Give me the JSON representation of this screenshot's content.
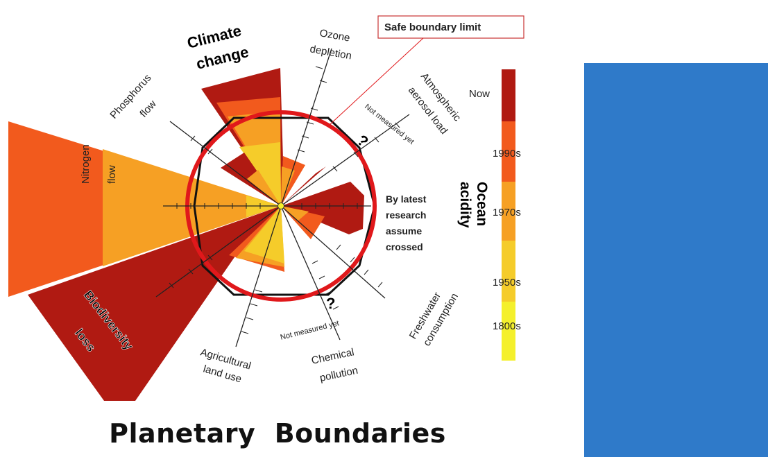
{
  "title": "Planetary  Boundaries",
  "callout": {
    "label": "Safe boundary limit"
  },
  "boundaries": {
    "climate": {
      "line1": "Climate",
      "line2": "change"
    },
    "ozone": {
      "line1": "Ozone",
      "line2": "depletion"
    },
    "aerosol": {
      "line1": "Atmospheric",
      "line2": "aerosol load"
    },
    "ocean": {
      "line1": "Ocean",
      "line2": "acidity"
    },
    "freshwater": {
      "line1": "Freshwater",
      "line2": "consumption"
    },
    "chemical": {
      "line1": "Chemical",
      "line2": "pollution"
    },
    "land": {
      "line1": "Agricultural",
      "line2": "land use"
    },
    "biodiversity": {
      "line1": "Biodiversity",
      "line2": "loss"
    },
    "nitrogen": {
      "line1": "Nitrogen",
      "line2": "flow"
    },
    "phosphorus": {
      "line1": "Phosphorus",
      "line2": "flow"
    }
  },
  "annotations": {
    "not_measured_top": "Not measured yet",
    "not_measured_bottom": "Not measured yet",
    "question_mark": "?",
    "latest_research": [
      "By latest",
      "research",
      "assume",
      "crossed"
    ]
  },
  "legend": {
    "labels": [
      "Now",
      "1990s",
      "1970s",
      "1950s",
      "1800s"
    ],
    "colors": [
      "#b01a12",
      "#f25a1d",
      "#f6a024",
      "#f5cc2a",
      "#f4f02c"
    ]
  },
  "colors": {
    "boundary_circle": "#e0181b",
    "safe_polygon": "#111111",
    "side_panel": "#2f7ac9"
  }
}
